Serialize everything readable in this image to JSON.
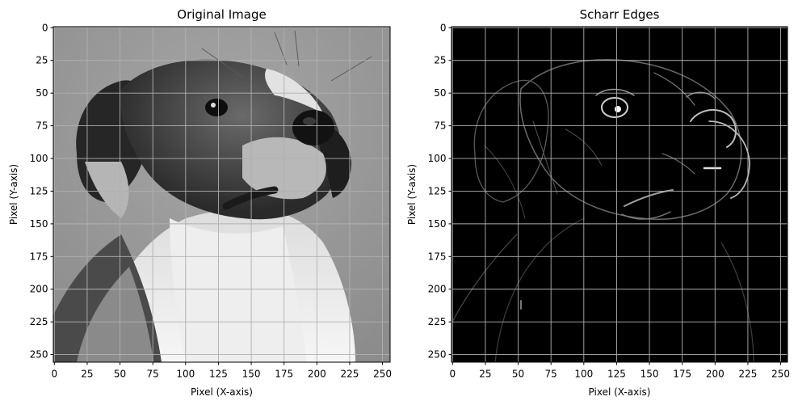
{
  "chart_data": [
    {
      "type": "image",
      "title": "Original Image",
      "xlabel": "Pixel (X-axis)",
      "ylabel": "Pixel (Y-axis)",
      "xlim": [
        0,
        255
      ],
      "ylim": [
        255,
        0
      ],
      "x_ticks": [
        0,
        25,
        50,
        75,
        100,
        125,
        150,
        175,
        200,
        225,
        250
      ],
      "y_ticks": [
        0,
        25,
        50,
        75,
        100,
        125,
        150,
        175,
        200,
        225,
        250
      ],
      "grid": true,
      "colormap": "gray",
      "background_color": "#9a9a9a",
      "content": "grayscale photo of a dog"
    },
    {
      "type": "image",
      "title": "Scharr Edges",
      "xlabel": "Pixel (X-axis)",
      "ylabel": "Pixel (Y-axis)",
      "xlim": [
        0,
        255
      ],
      "ylim": [
        255,
        0
      ],
      "x_ticks": [
        0,
        25,
        50,
        75,
        100,
        125,
        150,
        175,
        200,
        225,
        250
      ],
      "y_ticks": [
        0,
        25,
        50,
        75,
        100,
        125,
        150,
        175,
        200,
        225,
        250
      ],
      "grid": true,
      "colormap": "gray",
      "background_color": "#000000",
      "content": "edge map of the dog photo"
    }
  ]
}
